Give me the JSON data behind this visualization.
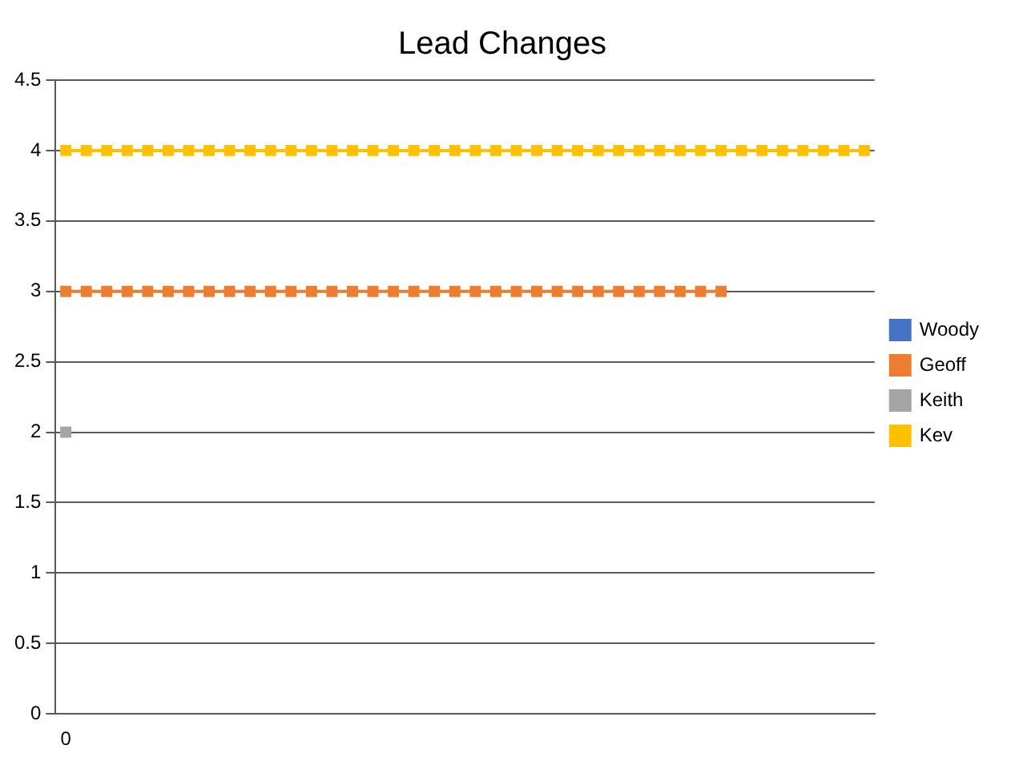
{
  "chart_data": {
    "type": "line",
    "title": "Lead Changes",
    "categories": [
      "0",
      null,
      null,
      null,
      null,
      null,
      null,
      null,
      null,
      null,
      null,
      null,
      null,
      null,
      null,
      null,
      null,
      null,
      null,
      null,
      null,
      null,
      null,
      null,
      null,
      null,
      null,
      null,
      null,
      null,
      null,
      null,
      null,
      null,
      null,
      null,
      null,
      null,
      null,
      null
    ],
    "series": [
      {
        "name": "Woody",
        "color": "#4472c4",
        "values": [
          null,
          null,
          null,
          null,
          null,
          null,
          null,
          null,
          null,
          null,
          null,
          null,
          null,
          null,
          null,
          null,
          null,
          null,
          null,
          null,
          null,
          null,
          null,
          null,
          null,
          null,
          null,
          null,
          null,
          null,
          null,
          null,
          null,
          null,
          null,
          null,
          null,
          null,
          null,
          null
        ]
      },
      {
        "name": "Geoff",
        "color": "#ed7d31",
        "values": [
          3,
          3,
          3,
          3,
          3,
          3,
          3,
          3,
          3,
          3,
          3,
          3,
          3,
          3,
          3,
          3,
          3,
          3,
          3,
          3,
          3,
          3,
          3,
          3,
          3,
          3,
          3,
          3,
          3,
          3,
          3,
          3,
          3,
          null,
          null,
          null,
          null,
          null,
          null,
          null
        ]
      },
      {
        "name": "Keith",
        "color": "#a5a5a5",
        "values": [
          2,
          null,
          null,
          null,
          null,
          null,
          null,
          null,
          null,
          null,
          null,
          null,
          null,
          null,
          null,
          null,
          null,
          null,
          null,
          null,
          null,
          null,
          null,
          null,
          null,
          null,
          null,
          null,
          null,
          null,
          null,
          null,
          null,
          null,
          null,
          null,
          null,
          null,
          null,
          null
        ]
      },
      {
        "name": "Kev",
        "color": "#ffc000",
        "values": [
          4,
          4,
          4,
          4,
          4,
          4,
          4,
          4,
          4,
          4,
          4,
          4,
          4,
          4,
          4,
          4,
          4,
          4,
          4,
          4,
          4,
          4,
          4,
          4,
          4,
          4,
          4,
          4,
          4,
          4,
          4,
          4,
          4,
          4,
          4,
          4,
          4,
          4,
          4,
          4
        ]
      }
    ],
    "ylim": [
      0,
      4.5
    ],
    "yticks": [
      0,
      0.5,
      1,
      1.5,
      2,
      2.5,
      3,
      3.5,
      4,
      4.5
    ],
    "grid": "y",
    "legend": "right",
    "marker": "square",
    "line_style": "solid"
  }
}
